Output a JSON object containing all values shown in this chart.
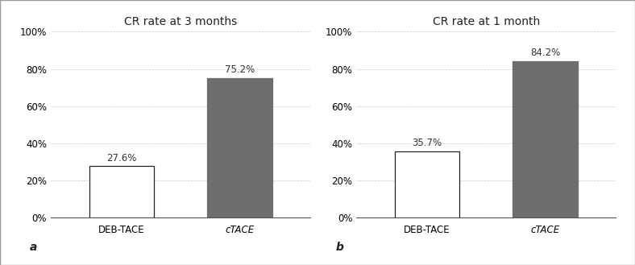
{
  "left_chart": {
    "title": "CR rate at 3 months",
    "categories": [
      "DEB-TACE",
      "cTACE"
    ],
    "values": [
      27.6,
      75.2
    ],
    "labels": [
      "27.6%",
      "75.2%"
    ],
    "bar_colors": [
      "#ffffff",
      "#6e6e6e"
    ],
    "bar_edgecolors": [
      "#222222",
      "#6e6e6e"
    ],
    "panel_label": "a"
  },
  "right_chart": {
    "title": "CR rate at 1 month",
    "categories": [
      "DEB-TACE",
      "cTACE"
    ],
    "values": [
      35.7,
      84.2
    ],
    "labels": [
      "35.7%",
      "84.2%"
    ],
    "bar_colors": [
      "#ffffff",
      "#6e6e6e"
    ],
    "bar_edgecolors": [
      "#222222",
      "#6e6e6e"
    ],
    "panel_label": "b"
  },
  "ylim": [
    0,
    100
  ],
  "yticks": [
    0,
    20,
    40,
    60,
    80,
    100
  ],
  "ytick_labels": [
    "0%",
    "20%",
    "40%",
    "60%",
    "80%",
    "100%"
  ],
  "background_color": "#ffffff",
  "grid_color": "#c8c8c8",
  "title_fontsize": 10,
  "tick_fontsize": 8.5,
  "annotation_fontsize": 8.5,
  "panel_label_fontsize": 10,
  "figure_border_color": "#aaaaaa"
}
